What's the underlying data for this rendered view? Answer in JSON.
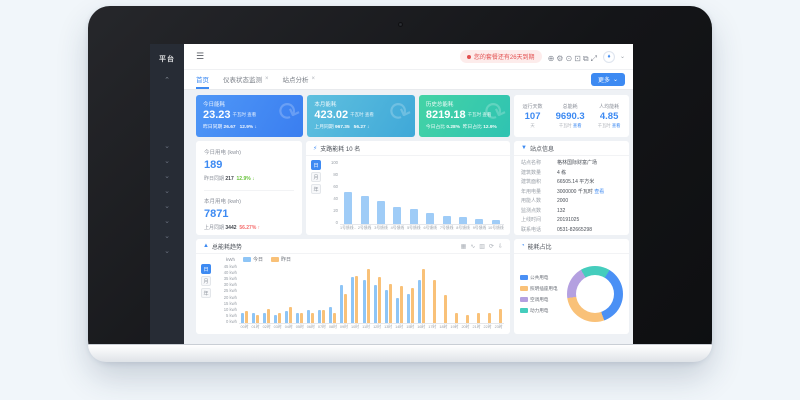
{
  "sidebar": {
    "logo": "平台",
    "collapse_glyph": "⌃",
    "chevron_glyph": "⌄",
    "chevron_count": 8
  },
  "navbar": {
    "menu_icon": "☰",
    "alert_text": "您的套餐还有26天到期",
    "icons": [
      {
        "name": "scan-icon",
        "glyph": "⊕"
      },
      {
        "name": "settings-icon",
        "glyph": "⚙"
      },
      {
        "name": "message-icon",
        "glyph": "⊙"
      },
      {
        "name": "shield-icon",
        "glyph": "⊡"
      },
      {
        "name": "theme-icon",
        "glyph": "⧉"
      },
      {
        "name": "fullscreen-icon",
        "glyph": "⤢"
      }
    ],
    "avatar_glyph": "♦",
    "caret": "⌄"
  },
  "tabs": {
    "items": [
      {
        "label": "首页",
        "active": true,
        "close": ""
      },
      {
        "label": "仪表状态监测",
        "active": false,
        "close": "×"
      },
      {
        "label": "站点分析",
        "active": false,
        "close": "×"
      }
    ],
    "more_label": "更多",
    "more_caret": "⌄"
  },
  "cards_watermark": "⟳",
  "cards": [
    {
      "title": "今日能耗",
      "value": "23.23",
      "unit": "千瓦时",
      "link": "查看",
      "f1l": "昨日同期",
      "f1v": "26.67",
      "f2l": "",
      "f2v": "12.9% ↓"
    },
    {
      "title": "本月能耗",
      "value": "423.02",
      "unit": "千瓦时",
      "link": "查看",
      "f1l": "上月同期",
      "f1v": "967.35",
      "f2l": "",
      "f2v": "56.27 ↓"
    },
    {
      "title": "历史总能耗",
      "value": "8219.18",
      "unit": "千瓦时",
      "link": "查看",
      "f1l": "今日占比",
      "f1v": "0.28%",
      "f2l": "昨日占比",
      "f2v": "12.9%"
    }
  ],
  "summary": {
    "cols": [
      {
        "label": "运行天数",
        "value": "107",
        "sub": "天",
        "link": ""
      },
      {
        "label": "总能耗",
        "value": "9690.3",
        "sub": "千瓦时",
        "link": "查看"
      },
      {
        "label": "人均能耗",
        "value": "4.85",
        "sub": "千瓦时",
        "link": "查看"
      }
    ]
  },
  "quickstats": [
    {
      "label": "今日用电 (kwh)",
      "value": "189",
      "foot_label": "昨日同期",
      "foot_value": "217",
      "delta": "12.9% ↓",
      "delta_color": "#67c23a"
    },
    {
      "label": "本月用电 (kwh)",
      "value": "7871",
      "foot_label": "上月同期",
      "foot_value": "3442",
      "delta": "56.27% ↑",
      "delta_color": "#f56c6c"
    }
  ],
  "site_info": {
    "title": "站点信息",
    "rows": [
      {
        "label": "站点名称",
        "value": "格林国际财富广场",
        "link": ""
      },
      {
        "label": "建筑数量",
        "value": "4 栋",
        "link": ""
      },
      {
        "label": "建筑面积",
        "value": "66505.14 平方米",
        "link": ""
      },
      {
        "label": "年用电量",
        "value": "3000000 千瓦时",
        "link": "查看"
      },
      {
        "label": "用能人数",
        "value": "2000",
        "link": ""
      },
      {
        "label": "监测点数",
        "value": "132",
        "link": ""
      },
      {
        "label": "上线时间",
        "value": "20191025",
        "link": ""
      },
      {
        "label": "联系电话",
        "value": "0531-82665298",
        "link": ""
      }
    ]
  },
  "toggles": {
    "options": [
      "日",
      "月",
      "年"
    ],
    "active": "日"
  },
  "chart_data": [
    {
      "id": "branch",
      "type": "bar",
      "title": "支路能耗 10 名",
      "categories": [
        "1号馈线…",
        "2号馈线",
        "3号馈线",
        "4号馈线",
        "5号馈线",
        "6号馈线",
        "7号馈线",
        "8号馈线",
        "9号馈线",
        "10号馈线"
      ],
      "values": [
        50,
        44,
        36,
        27,
        23,
        17,
        13,
        11,
        8,
        6
      ],
      "ylim": [
        0,
        100
      ],
      "yticks": [
        "100",
        "80",
        "60",
        "40",
        "20",
        "0"
      ],
      "bar_color": "#9fccf7",
      "grid": false,
      "legend_position": "none"
    },
    {
      "id": "trend",
      "type": "bar",
      "title": "总能耗趋势",
      "unit_label": "kWh",
      "x": [
        "00时",
        "01时",
        "02时",
        "03时",
        "04时",
        "05时",
        "06时",
        "07时",
        "08时",
        "09时",
        "10时",
        "11时",
        "12时",
        "13时",
        "14时",
        "15时",
        "16时",
        "17时",
        "18时",
        "19时",
        "20时",
        "21时",
        "22时",
        "23时"
      ],
      "series": [
        {
          "name": "今日",
          "color": "#8ec5f6",
          "values": [
            8,
            8,
            8,
            6,
            9,
            8,
            10,
            10,
            12,
            29,
            35,
            33,
            29,
            25,
            19,
            22,
            33,
            null,
            null,
            null,
            null,
            null,
            null,
            null
          ]
        },
        {
          "name": "昨日",
          "color": "#f9c178",
          "values": [
            9,
            6,
            11,
            8,
            12,
            8,
            8,
            10,
            8,
            22,
            36,
            41,
            35,
            30,
            28,
            27,
            41,
            33,
            21,
            8,
            6,
            8,
            8,
            11
          ]
        }
      ],
      "ylim": [
        0,
        45
      ],
      "yticks": [
        "45 kwh",
        "40 kwh",
        "35 kwh",
        "30 kwh",
        "25 kwh",
        "20 kwh",
        "15 kwh",
        "10 kwh",
        "5 kwh",
        "0 kwh"
      ],
      "grid": false,
      "legend_position": "top",
      "toolbar_icons": [
        {
          "name": "table-icon",
          "glyph": "▦"
        },
        {
          "name": "line-chart-icon",
          "glyph": "∿"
        },
        {
          "name": "bar-chart-icon",
          "glyph": "▥"
        },
        {
          "name": "refresh-icon",
          "glyph": "⟳"
        },
        {
          "name": "download-icon",
          "glyph": "⇩"
        }
      ]
    },
    {
      "id": "energy_mix",
      "type": "pie",
      "title": "能耗占比",
      "donut": true,
      "start_angle_deg": -30,
      "draw_sequence": [
        3,
        0,
        1,
        2
      ],
      "slices": [
        {
          "name": "公共用电",
          "color": "#4a90f5",
          "pct": 36
        },
        {
          "name": "照明插座用电",
          "color": "#f9c178",
          "pct": 28
        },
        {
          "name": "空调用电",
          "color": "#b4a0e0",
          "pct": 19
        },
        {
          "name": "动力用电",
          "color": "#45cdbd",
          "pct": 17
        }
      ],
      "legend_position": "left"
    }
  ],
  "colors": {
    "primary": "#3d8af2",
    "up_bad": "#f56c6c",
    "down_good": "#67c23a"
  }
}
